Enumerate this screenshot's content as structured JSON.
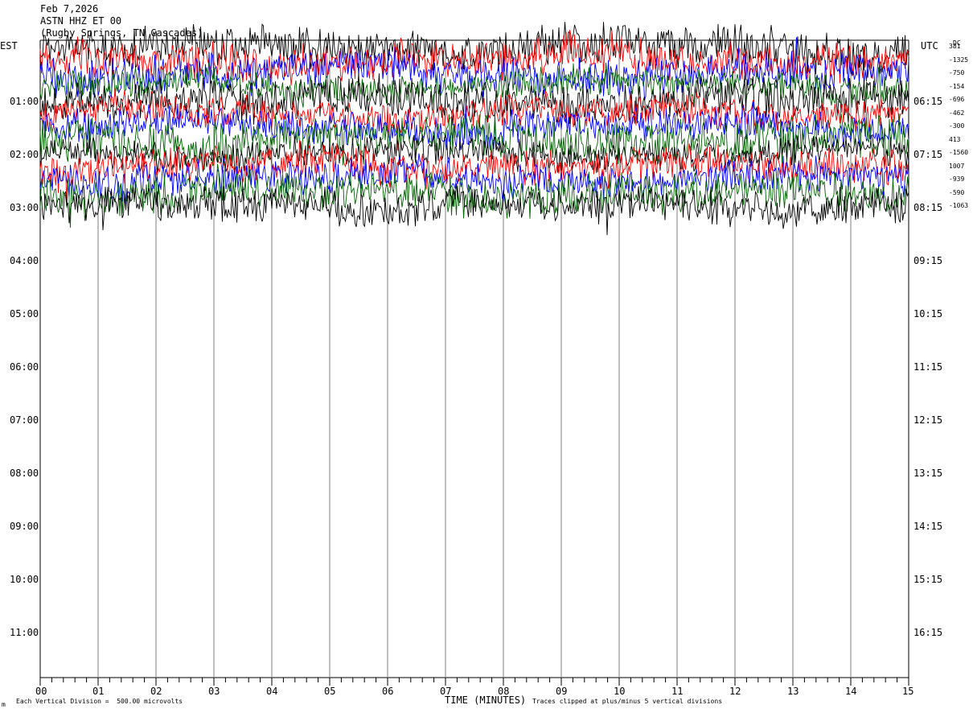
{
  "header": {
    "date": "Feb 7,2026",
    "channel": "ASTN HHZ ET 00",
    "location": "(Rugby Springs, TN Cascades)"
  },
  "axes": {
    "left_tz": "EST",
    "right_tz": "UTC",
    "dc_header": "DC",
    "xlabel": "TIME (MINUTES)"
  },
  "footer": {
    "scale_note": "Each Vertical Division =  500.00 microvolts",
    "clip_note": "Traces clipped at plus/minus 5 vertical divisions",
    "corner_mark": "m"
  },
  "chart_data": {
    "type": "line",
    "title": "",
    "xlabel": "TIME (MINUTES)",
    "ylabel": "",
    "x_range": [
      0,
      15
    ],
    "x_ticks": [
      "00",
      "01",
      "02",
      "03",
      "04",
      "05",
      "06",
      "07",
      "08",
      "09",
      "10",
      "11",
      "12",
      "13",
      "14",
      "15"
    ],
    "left_time_labels": [
      "01:00",
      "02:00",
      "03:00",
      "04:00",
      "05:00",
      "06:00",
      "07:00",
      "08:00",
      "09:00",
      "10:00",
      "11:00"
    ],
    "right_time_labels": [
      "06:15",
      "07:15",
      "08:15",
      "09:15",
      "10:15",
      "11:15",
      "12:15",
      "13:15",
      "14:15",
      "15:15",
      "16:15"
    ],
    "rows_per_hour": 4,
    "minutes_per_row": 15,
    "trace_colors": [
      "#000000",
      "#ff0000",
      "#0000ff",
      "#006400"
    ],
    "dc_offsets": [
      "381",
      "-1325",
      "-750",
      "-154",
      "-696",
      "-462",
      "-300",
      "413",
      "-1560",
      "1007",
      "-939",
      "-590",
      "-1063"
    ],
    "grid": "vertical lines each minute",
    "trace_amplitude_divisions": 5,
    "traces_recorded": 13
  }
}
